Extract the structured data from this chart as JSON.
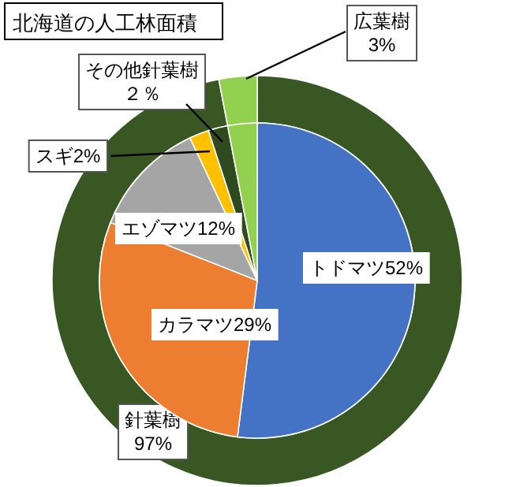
{
  "chart_data": [
    {
      "type": "donut",
      "title": "北海道の人工林面積",
      "categories": [
        "針葉樹",
        "広葉樹"
      ],
      "values": [
        97,
        3
      ],
      "colors": [
        "#385723",
        "#92d050"
      ],
      "value_labels": [
        "97%",
        "3%"
      ]
    },
    {
      "type": "pie",
      "categories": [
        "トドマツ",
        "カラマツ",
        "エゾマツ",
        "スギ",
        "その他針葉樹",
        null
      ],
      "values": [
        52,
        29,
        12,
        2,
        2,
        3
      ],
      "colors": [
        "#4472c4",
        "#ed7d31",
        "#a5a5a5",
        "#ffc000",
        "#2e4a1e",
        "#92d050"
      ],
      "value_labels": [
        "52%",
        "29%",
        "12%",
        "2%",
        "２％",
        null
      ]
    }
  ]
}
